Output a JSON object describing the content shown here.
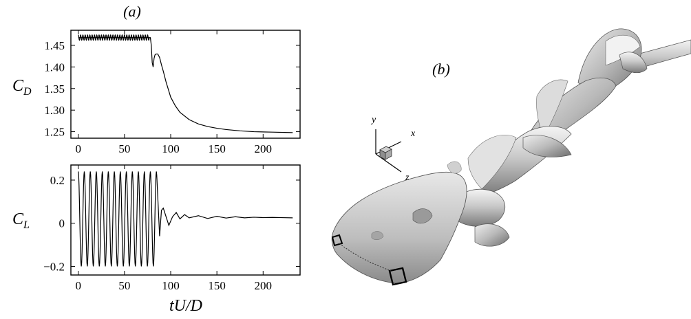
{
  "panel_a_label": "(a)",
  "panel_b_label": "(b)",
  "shared_xlabel": "tU/D",
  "triad": {
    "y": "y",
    "x": "x",
    "z": "z"
  },
  "chart_data": [
    {
      "type": "line",
      "ylabel_main": "C",
      "ylabel_sub": "D",
      "xlim": [
        -8,
        240
      ],
      "ylim": [
        1.235,
        1.485
      ],
      "xticks": [
        0,
        50,
        100,
        150,
        200
      ],
      "yticks": [
        1.25,
        1.3,
        1.35,
        1.4,
        1.45
      ],
      "ytick_labels": [
        "1.25",
        "1.30",
        "1.35",
        "1.40",
        "1.45"
      ],
      "grid": false,
      "series": [
        {
          "x": [
            0,
            78,
            79,
            80,
            81,
            82,
            83,
            84,
            86,
            88,
            90,
            92,
            95,
            100,
            105,
            110,
            120,
            130,
            140,
            150,
            160,
            175,
            190,
            210,
            232
          ],
          "y": [
            1.468,
            1.468,
            1.45,
            1.41,
            1.4,
            1.42,
            1.428,
            1.43,
            1.43,
            1.422,
            1.405,
            1.39,
            1.365,
            1.33,
            1.31,
            1.295,
            1.278,
            1.268,
            1.262,
            1.258,
            1.255,
            1.252,
            1.25,
            1.249,
            1.248
          ]
        }
      ],
      "oscillation": {
        "x_start": 0,
        "x_end": 77,
        "center": 1.468,
        "amplitude": 0.006,
        "period": 2.5
      }
    },
    {
      "type": "line",
      "ylabel_main": "C",
      "ylabel_sub": "L",
      "xlim": [
        -8,
        240
      ],
      "ylim": [
        -0.24,
        0.27
      ],
      "xticks": [
        0,
        50,
        100,
        150,
        200
      ],
      "yticks": [
        -0.2,
        0,
        0.2
      ],
      "ytick_labels": [
        "−0.2",
        "0",
        "0.2"
      ],
      "grid": false,
      "series": [
        {
          "x": [
            88,
            89,
            90,
            92,
            95,
            98,
            102,
            106,
            110,
            115,
            120,
            130,
            140,
            150,
            160,
            170,
            180,
            190,
            200,
            210,
            220,
            232
          ],
          "y": [
            -0.06,
            0.0,
            0.06,
            0.07,
            0.03,
            -0.01,
            0.03,
            0.05,
            0.02,
            0.04,
            0.025,
            0.035,
            0.022,
            0.032,
            0.024,
            0.03,
            0.025,
            0.028,
            0.026,
            0.027,
            0.026,
            0.025
          ]
        }
      ],
      "oscillation": {
        "x_start": 0,
        "x_end": 85,
        "center": 0.02,
        "amplitude": 0.22,
        "period": 6.5
      }
    }
  ],
  "xtick_labels": [
    "0",
    "50",
    "100",
    "150",
    "200"
  ]
}
